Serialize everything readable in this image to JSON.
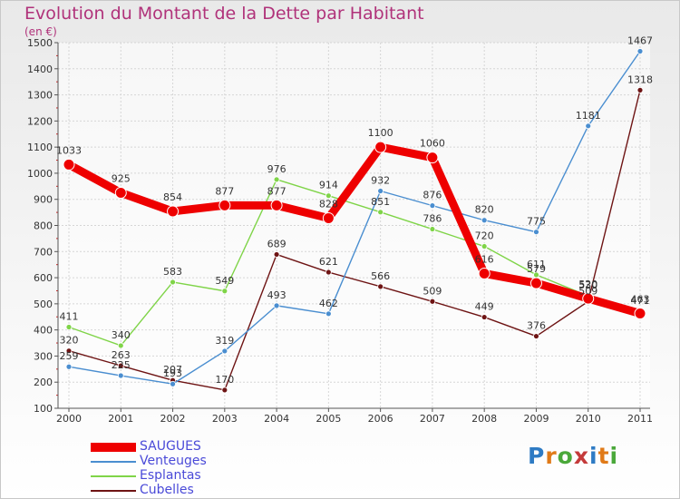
{
  "header": {
    "title": "Evolution du Montant de la Dette par Habitant",
    "subtitle": "(en €)"
  },
  "brand": {
    "text": "Proxiti",
    "letter_colors": [
      "#2e7bc4",
      "#e07a18",
      "#4aa83a",
      "#c43a3a",
      "#2e7bc4",
      "#e07a18",
      "#4aa83a"
    ]
  },
  "chart_data": {
    "type": "line",
    "title": "Evolution du Montant de la Dette par Habitant",
    "subtitle": "(en €)",
    "xlabel": "",
    "ylabel": "",
    "x": [
      "2000",
      "2001",
      "2002",
      "2003",
      "2004",
      "2005",
      "2006",
      "2007",
      "2008",
      "2009",
      "2010",
      "2011"
    ],
    "ylim": [
      100,
      1500
    ],
    "yticks": [
      100,
      200,
      300,
      400,
      500,
      600,
      700,
      800,
      900,
      1000,
      1100,
      1200,
      1300,
      1400,
      1500
    ],
    "grid": true,
    "legend_position": "bottom-left",
    "series": [
      {
        "name": "SAUGUES",
        "color": "#ee0000",
        "values": [
          1033,
          925,
          854,
          877,
          877,
          828,
          1100,
          1060,
          616,
          579,
          520,
          463
        ]
      },
      {
        "name": "Venteuges",
        "color": "#4a8ed0",
        "values": [
          259,
          225,
          193,
          319,
          493,
          462,
          932,
          876,
          820,
          775,
          1181,
          1467
        ]
      },
      {
        "name": "Esplantas",
        "color": "#7fd448",
        "values": [
          411,
          340,
          583,
          549,
          976,
          914,
          851,
          786,
          720,
          611,
          530,
          471
        ]
      },
      {
        "name": "Cubelles",
        "color": "#6e1414",
        "values": [
          320,
          263,
          207,
          170,
          689,
          621,
          566,
          509,
          449,
          376,
          509,
          1318
        ]
      }
    ]
  }
}
